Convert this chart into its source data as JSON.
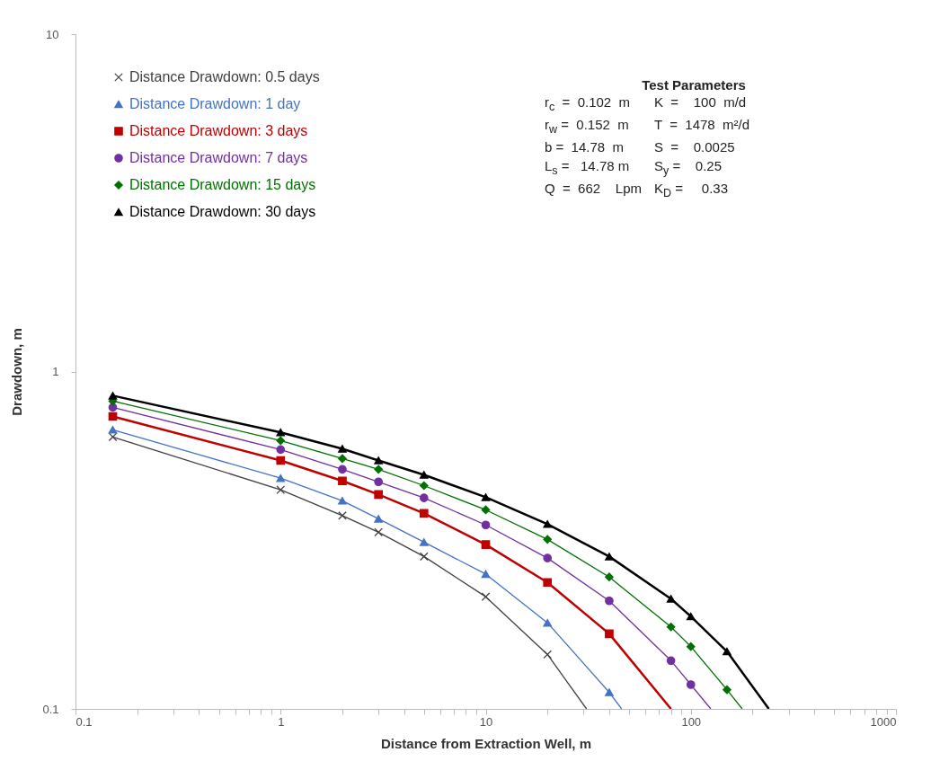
{
  "chart_data": {
    "type": "line",
    "xlabel": "Distance from Extraction Well, m",
    "ylabel": "Drawdown, m",
    "log": "xy",
    "grid": false,
    "legend": "top left",
    "xlim": [
      0.1,
      1000
    ],
    "ylim": [
      0.1,
      10
    ],
    "xticks": [
      0.1,
      {
        "value": 0.2,
        "label": null
      },
      {
        "value": 0.3,
        "label": null
      },
      {
        "value": 0.4,
        "label": null
      },
      {
        "value": 0.5,
        "label": null
      },
      {
        "value": 0.6,
        "label": null
      },
      {
        "value": 0.7,
        "label": null
      },
      {
        "value": 0.8,
        "label": null
      },
      {
        "value": 0.9,
        "label": null
      },
      1,
      {
        "value": 2,
        "label": null
      },
      {
        "value": 3,
        "label": null
      },
      {
        "value": 4,
        "label": null
      },
      {
        "value": 5,
        "label": null
      },
      {
        "value": 6,
        "label": null
      },
      {
        "value": 7,
        "label": null
      },
      {
        "value": 8,
        "label": null
      },
      {
        "value": 9,
        "label": null
      },
      10,
      {
        "value": 20,
        "label": null
      },
      {
        "value": 30,
        "label": null
      },
      {
        "value": 40,
        "label": null
      },
      {
        "value": 50,
        "label": null
      },
      {
        "value": 60,
        "label": null
      },
      {
        "value": 70,
        "label": null
      },
      {
        "value": 80,
        "label": null
      },
      {
        "value": 90,
        "label": null
      },
      100,
      {
        "value": 200,
        "label": null
      },
      {
        "value": 300,
        "label": null
      },
      {
        "value": 400,
        "label": null
      },
      {
        "value": 500,
        "label": null
      },
      {
        "value": 600,
        "label": null
      },
      {
        "value": 700,
        "label": null
      },
      {
        "value": 800,
        "label": null
      },
      {
        "value": 900,
        "label": null
      },
      1000
    ],
    "yticks": [
      0.1,
      1,
      10
    ],
    "annotations": [
      "Test Parameters",
      "r$_{c}$  =  0.102  m",
      "K  =    100  m/d",
      "r$_{w}$ =  0.152  m",
      "T  =  1478  m²/d",
      "b =  14.78  m",
      "S  =    0.0025",
      "L$_{s}$ =   14.78 m",
      "S$_{y}$ =    0.25",
      "Q  =  662    Lpm",
      "K$_{D}$ =     0.33"
    ],
    "series": [
      {
        "name": "Distance Drawdown:  0.5 days",
        "color": "#404040",
        "marker": "cross",
        "x": [
          0.152,
          1,
          2,
          3,
          5,
          10,
          20,
          31
        ],
        "values": [
          0.64,
          0.446,
          0.374,
          0.334,
          0.283,
          0.215,
          0.145,
          0.1
        ]
      },
      {
        "name": "Distance Drawdown:  1 day",
        "color": "#4472c4",
        "marker": "triangle",
        "x": [
          0.152,
          1,
          2,
          3,
          5,
          10,
          20,
          40,
          46
        ],
        "values": [
          0.672,
          0.483,
          0.414,
          0.366,
          0.312,
          0.251,
          0.18,
          0.112,
          0.1
        ]
      },
      {
        "name": "Distance Drawdown:  3 days",
        "color": "#c00000",
        "marker": "square",
        "x": [
          0.152,
          1,
          2,
          3,
          5,
          10,
          20,
          40,
          80
        ],
        "values": [
          0.736,
          0.545,
          0.474,
          0.432,
          0.38,
          0.307,
          0.237,
          0.167,
          0.1
        ]
      },
      {
        "name": "Distance Drawdown:  7 days",
        "color": "#7030a0",
        "marker": "circle",
        "x": [
          0.152,
          1,
          2,
          3,
          5,
          10,
          20,
          40,
          80,
          100,
          125
        ],
        "values": [
          0.783,
          0.587,
          0.513,
          0.471,
          0.422,
          0.351,
          0.28,
          0.209,
          0.139,
          0.118,
          0.1
        ]
      },
      {
        "name": "Distance Drawdown: 15 days",
        "color": "#007000",
        "marker": "diamond",
        "x": [
          0.152,
          1,
          2,
          3,
          5,
          10,
          20,
          40,
          80,
          100,
          150,
          178
        ],
        "values": [
          0.817,
          0.624,
          0.552,
          0.513,
          0.459,
          0.389,
          0.318,
          0.246,
          0.175,
          0.153,
          0.114,
          0.1
        ]
      },
      {
        "name": "Distance Drawdown: 30 days",
        "color": "#000000",
        "marker": "triangle",
        "x": [
          0.152,
          1,
          2,
          3,
          5,
          10,
          20,
          40,
          80,
          100,
          150,
          240
        ],
        "values": [
          0.848,
          0.66,
          0.59,
          0.545,
          0.494,
          0.424,
          0.353,
          0.283,
          0.212,
          0.188,
          0.148,
          0.1
        ]
      }
    ]
  }
}
